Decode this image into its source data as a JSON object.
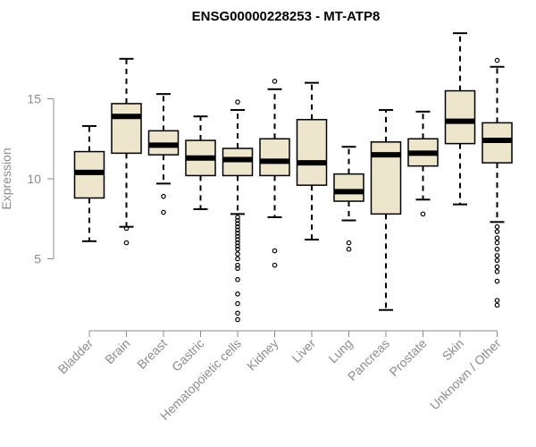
{
  "chart_data": {
    "type": "boxplot",
    "title": "ENSG00000228253 - MT-ATP8",
    "xlabel": "",
    "ylabel": "Expression",
    "ylim": [
      0.5,
      19.5
    ],
    "yticks": [
      5,
      10,
      15
    ],
    "grid": false,
    "colors": {
      "box_fill": "#ede6cc",
      "box_stroke": "#000000",
      "axis": "#8c8c8c"
    },
    "categories": [
      "Bladder",
      "Brain",
      "Breast",
      "Gastric",
      "Hematopoietic cells",
      "Kidney",
      "Liver",
      "Lung",
      "Pancreas",
      "Prostate",
      "Skin",
      "Unknown / Other"
    ],
    "boxes": [
      {
        "name": "Bladder",
        "whisker_low": 6.1,
        "q1": 8.8,
        "median": 10.4,
        "q3": 11.7,
        "whisker_high": 13.3,
        "outliers": []
      },
      {
        "name": "Brain",
        "whisker_low": 7.0,
        "q1": 11.6,
        "median": 13.9,
        "q3": 14.7,
        "whisker_high": 17.5,
        "outliers": [
          6.9,
          6.0
        ]
      },
      {
        "name": "Breast",
        "whisker_low": 9.7,
        "q1": 11.5,
        "median": 12.1,
        "q3": 13.0,
        "whisker_high": 15.3,
        "outliers": [
          8.9,
          7.9
        ]
      },
      {
        "name": "Gastric",
        "whisker_low": 8.1,
        "q1": 10.2,
        "median": 11.3,
        "q3": 12.4,
        "whisker_high": 13.9,
        "outliers": []
      },
      {
        "name": "Hematopoietic cells",
        "whisker_low": 7.8,
        "q1": 10.2,
        "median": 11.2,
        "q3": 11.9,
        "whisker_high": 14.3,
        "outliers": [
          14.8,
          7.6,
          7.4,
          7.2,
          7.0,
          6.8,
          6.6,
          6.4,
          6.2,
          6.0,
          5.8,
          5.6,
          5.3,
          5.0,
          4.6,
          4.4,
          3.7,
          2.8,
          2.2,
          1.6,
          1.2
        ]
      },
      {
        "name": "Kidney",
        "whisker_low": 7.6,
        "q1": 10.2,
        "median": 11.1,
        "q3": 12.5,
        "whisker_high": 15.6,
        "outliers": [
          16.1,
          5.5,
          4.6
        ]
      },
      {
        "name": "Liver",
        "whisker_low": 6.2,
        "q1": 9.6,
        "median": 11.0,
        "q3": 13.7,
        "whisker_high": 16.0,
        "outliers": []
      },
      {
        "name": "Lung",
        "whisker_low": 7.4,
        "q1": 8.6,
        "median": 9.2,
        "q3": 10.3,
        "whisker_high": 12.0,
        "outliers": [
          6.0,
          5.6
        ]
      },
      {
        "name": "Pancreas",
        "whisker_low": 1.8,
        "q1": 7.8,
        "median": 11.5,
        "q3": 12.3,
        "whisker_high": 14.3,
        "outliers": []
      },
      {
        "name": "Prostate",
        "whisker_low": 8.7,
        "q1": 10.8,
        "median": 11.6,
        "q3": 12.5,
        "whisker_high": 14.2,
        "outliers": [
          7.8
        ]
      },
      {
        "name": "Skin",
        "whisker_low": 8.4,
        "q1": 12.2,
        "median": 13.6,
        "q3": 15.5,
        "whisker_high": 19.1,
        "outliers": []
      },
      {
        "name": "Unknown / Other",
        "whisker_low": 7.3,
        "q1": 11.0,
        "median": 12.4,
        "q3": 13.5,
        "whisker_high": 17.0,
        "outliers": [
          17.4,
          7.0,
          6.7,
          6.3,
          6.0,
          5.6,
          5.2,
          4.9,
          4.5,
          4.2,
          3.6,
          2.4,
          2.1
        ]
      }
    ]
  }
}
